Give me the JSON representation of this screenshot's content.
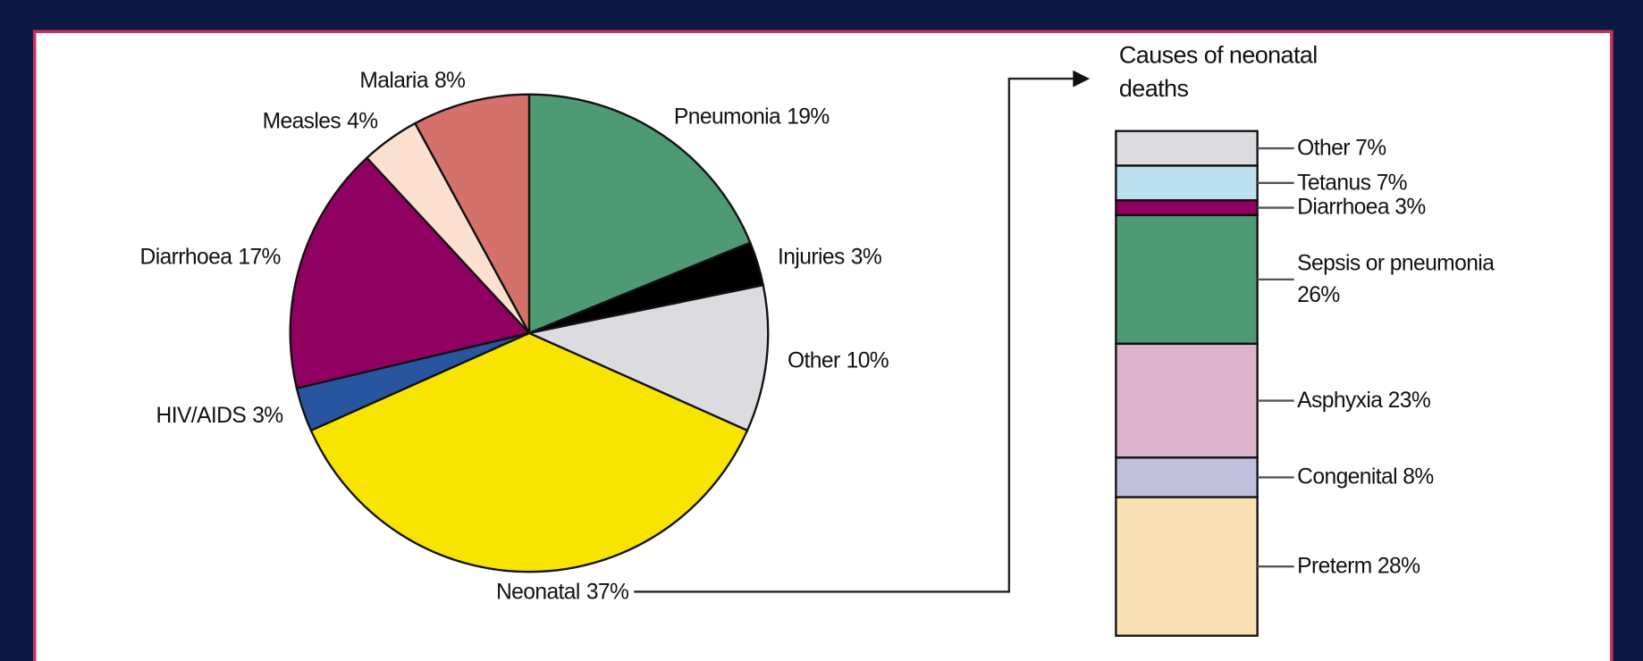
{
  "chart_data": [
    {
      "type": "pie",
      "categories": [
        "Pneumonia",
        "Injuries",
        "Other",
        "Neonatal",
        "HIV/AIDS",
        "Diarrhoea",
        "Measles",
        "Malaria"
      ],
      "values": [
        19,
        3,
        10,
        37,
        3,
        17,
        4,
        8
      ],
      "value_labels": [
        "19%",
        "3%",
        "10%",
        "37%",
        "3%",
        "17%",
        "4%",
        "8%"
      ],
      "colors": [
        "#4e9a74",
        "#000000",
        "#dcdbe0",
        "#f7e400",
        "#2855a0",
        "#900060",
        "#fbe0d0",
        "#d4716a"
      ]
    },
    {
      "type": "stacked_bar",
      "title": "Causes of neonatal deaths",
      "categories": [
        "Other",
        "Tetanus",
        "Diarrhoea",
        "Sepsis or pneumonia",
        "Asphyxia",
        "Congenital",
        "Preterm"
      ],
      "values": [
        7,
        7,
        3,
        26,
        23,
        8,
        28
      ],
      "value_labels": [
        "7%",
        "7%",
        "3%",
        "26%",
        "23%",
        "8%",
        "28%"
      ],
      "colors": [
        "#dcdbe0",
        "#bde0f0",
        "#900060",
        "#4e9a74",
        "#dbb4cc",
        "#c0c0dc",
        "#f8dfb4"
      ]
    }
  ]
}
